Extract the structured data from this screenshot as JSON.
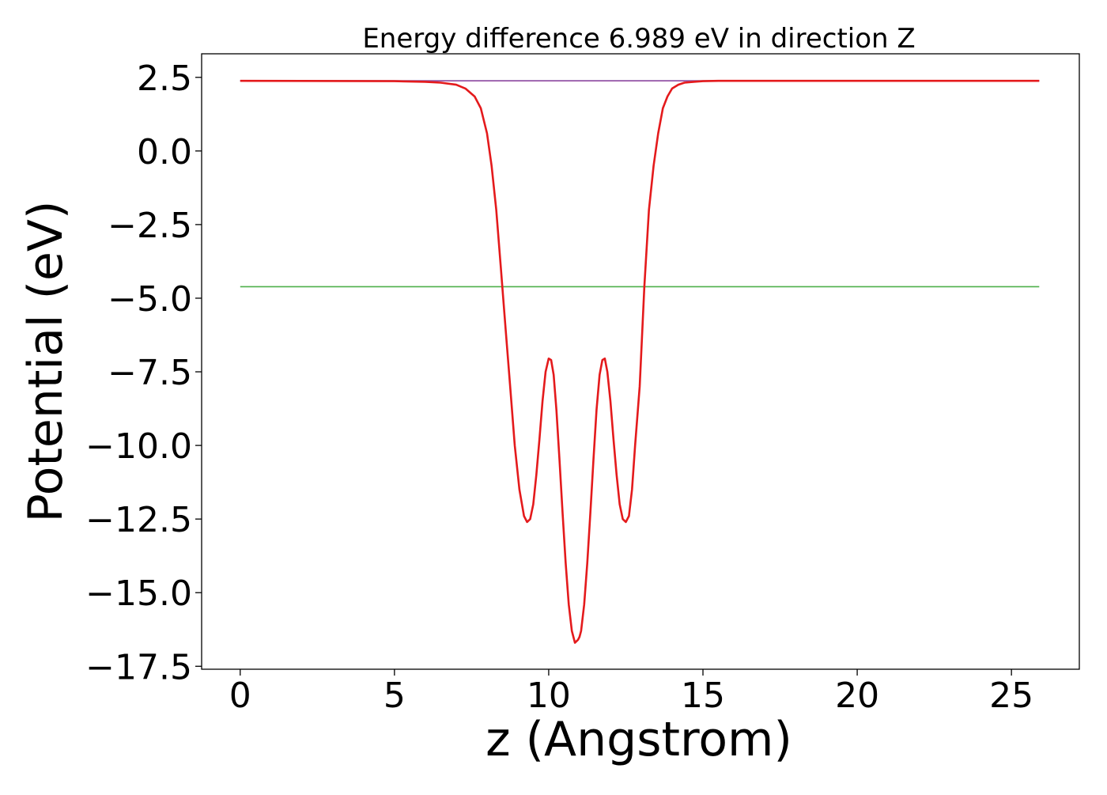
{
  "chart_data": {
    "type": "line",
    "title": "Energy difference 6.989 eV in direction Z",
    "xlabel": "z (Angstrom)",
    "ylabel": "Potential (eV)",
    "xlim": [
      -1.25,
      27.2
    ],
    "ylim": [
      -17.6,
      3.3
    ],
    "xticks": [
      0,
      5,
      10,
      15,
      20,
      25
    ],
    "xtick_labels": [
      "0",
      "5",
      "10",
      "15",
      "20",
      "25"
    ],
    "yticks": [
      2.5,
      0.0,
      -2.5,
      -5.0,
      -7.5,
      -10.0,
      -12.5,
      -15.0,
      -17.5
    ],
    "ytick_labels": [
      "2.5",
      "0.0",
      "−2.5",
      "−5.0",
      "−7.5",
      "−10.0",
      "−12.5",
      "−15.0",
      "−17.5"
    ],
    "grid": false,
    "legend": false,
    "series": [
      {
        "color": "#1f77b4",
        "x": [
          0,
          25.9
        ],
        "y": [
          2.38,
          2.38
        ]
      },
      {
        "color": "#4daf4a",
        "x": [
          0,
          25.9
        ],
        "y": [
          -4.61,
          -4.61
        ]
      },
      {
        "color": "#984ea3",
        "x": [
          0,
          25.9
        ],
        "y": [
          2.38,
          2.38
        ]
      },
      {
        "color": "#e41a1c",
        "x": [
          0,
          5.0,
          6.0,
          6.5,
          7.0,
          7.3,
          7.6,
          7.8,
          8.0,
          8.15,
          8.3,
          8.45,
          8.6,
          8.75,
          8.9,
          9.05,
          9.2,
          9.3,
          9.4,
          9.5,
          9.6,
          9.7,
          9.8,
          9.9,
          10.0,
          10.08,
          10.16,
          10.25,
          10.35,
          10.45,
          10.55,
          10.65,
          10.75,
          10.85,
          10.95,
          11.0,
          11.05,
          11.15,
          11.25,
          11.35,
          11.45,
          11.55,
          11.65,
          11.74,
          11.82,
          11.9,
          12.0,
          12.1,
          12.2,
          12.3,
          12.4,
          12.5,
          12.6,
          12.7,
          12.8,
          12.95,
          13.1,
          13.25,
          13.4,
          13.55,
          13.7,
          13.85,
          14.0,
          14.2,
          14.4,
          14.7,
          15.0,
          15.5,
          16.0,
          17.0,
          20.0,
          25.9
        ],
        "y": [
          2.38,
          2.37,
          2.35,
          2.32,
          2.25,
          2.12,
          1.85,
          1.45,
          0.6,
          -0.5,
          -2.0,
          -4.0,
          -6.0,
          -8.0,
          -10.0,
          -11.5,
          -12.4,
          -12.6,
          -12.5,
          -12.0,
          -11.0,
          -9.8,
          -8.5,
          -7.5,
          -7.05,
          -7.1,
          -7.6,
          -8.8,
          -10.5,
          -12.3,
          -14.0,
          -15.4,
          -16.3,
          -16.7,
          -16.6,
          -16.5,
          -16.3,
          -15.4,
          -14.0,
          -12.3,
          -10.5,
          -8.8,
          -7.6,
          -7.1,
          -7.05,
          -7.5,
          -8.5,
          -9.8,
          -11.0,
          -12.0,
          -12.5,
          -12.6,
          -12.4,
          -11.5,
          -10.0,
          -8.0,
          -4.6,
          -2.0,
          -0.5,
          0.6,
          1.45,
          1.85,
          2.12,
          2.25,
          2.32,
          2.35,
          2.37,
          2.38,
          2.38,
          2.38,
          2.38,
          2.38
        ]
      }
    ]
  }
}
